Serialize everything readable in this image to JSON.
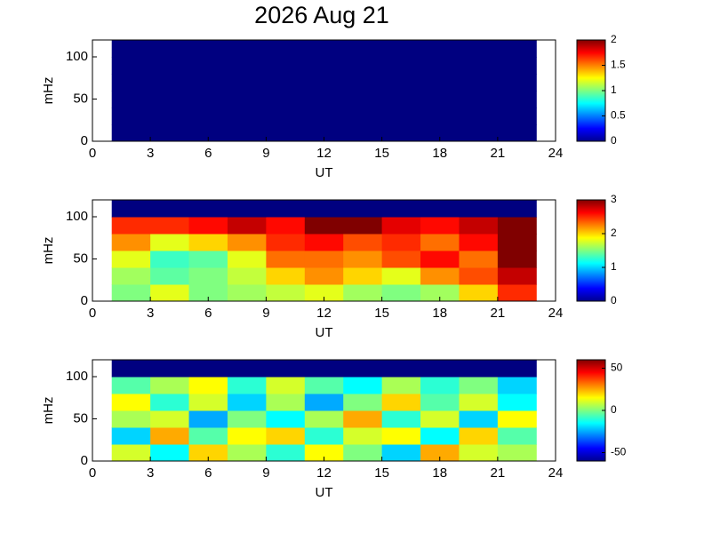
{
  "chart_data": [
    {
      "type": "heatmap",
      "title": "2026 Aug 21",
      "xlabel": "UT",
      "ylabel": "mHz",
      "colormap": "jet",
      "xlim": [
        0,
        24
      ],
      "xticks": [
        0,
        3,
        6,
        9,
        12,
        15,
        18,
        21,
        24
      ],
      "ylim": [
        0,
        120
      ],
      "yticks": [
        0,
        50,
        100
      ],
      "xbins": [
        1,
        3,
        5,
        7,
        9,
        11,
        13,
        15,
        17,
        19,
        21,
        23
      ],
      "ybins": [
        0,
        20,
        40,
        60,
        80,
        100,
        120
      ],
      "values": [
        [
          0,
          0,
          0,
          0,
          0,
          0,
          0,
          0,
          0,
          0,
          0
        ],
        [
          0,
          0,
          0,
          0,
          0,
          0,
          0,
          0,
          0,
          0,
          0
        ],
        [
          0,
          0,
          0,
          0,
          0,
          0,
          0,
          0,
          0,
          0,
          0
        ],
        [
          0,
          0,
          0,
          0,
          0,
          0,
          0,
          0,
          0,
          0,
          0
        ],
        [
          0,
          0,
          0,
          0,
          0,
          0,
          0,
          0,
          0,
          0,
          0
        ],
        [
          0,
          0,
          0,
          0,
          0,
          0,
          0,
          0,
          0,
          0,
          0
        ]
      ],
      "clim": [
        0,
        2
      ],
      "cticks": [
        0,
        0.5,
        1,
        1.5,
        2
      ]
    },
    {
      "type": "heatmap",
      "xlabel": "UT",
      "ylabel": "mHz",
      "colormap": "jet",
      "xlim": [
        0,
        24
      ],
      "xticks": [
        0,
        3,
        6,
        9,
        12,
        15,
        18,
        21,
        24
      ],
      "ylim": [
        0,
        120
      ],
      "yticks": [
        0,
        50,
        100
      ],
      "xbins": [
        1,
        3,
        5,
        7,
        9,
        11,
        13,
        15,
        17,
        19,
        21,
        23
      ],
      "ybins": [
        0,
        20,
        40,
        60,
        80,
        100,
        120
      ],
      "values": [
        [
          1.5,
          1.8,
          1.5,
          1.6,
          1.7,
          1.8,
          1.6,
          1.5,
          1.6,
          2.0,
          2.5
        ],
        [
          1.6,
          1.4,
          1.5,
          1.7,
          2.0,
          2.2,
          2.0,
          1.8,
          2.2,
          2.4,
          2.8
        ],
        [
          1.8,
          1.3,
          1.4,
          1.8,
          2.3,
          2.3,
          2.2,
          2.4,
          2.6,
          2.3,
          3
        ],
        [
          2.2,
          1.8,
          2.0,
          2.2,
          2.5,
          2.6,
          2.4,
          2.5,
          2.3,
          2.6,
          3
        ],
        [
          2.5,
          2.5,
          2.6,
          2.8,
          2.6,
          3,
          3,
          2.7,
          2.6,
          2.8,
          3
        ],
        [
          0,
          0,
          0,
          0,
          0,
          0,
          0,
          0,
          0,
          0,
          0
        ]
      ],
      "clim": [
        0,
        3
      ],
      "cticks": [
        0,
        1,
        2,
        3
      ]
    },
    {
      "type": "heatmap",
      "xlabel": "UT",
      "ylabel": "mHz",
      "colormap": "jet",
      "xlim": [
        0,
        24
      ],
      "xticks": [
        0,
        3,
        6,
        9,
        12,
        15,
        18,
        21,
        24
      ],
      "ylim": [
        0,
        120
      ],
      "yticks": [
        0,
        50,
        100
      ],
      "xbins": [
        1,
        3,
        5,
        7,
        9,
        11,
        13,
        15,
        17,
        19,
        21,
        23
      ],
      "ybins": [
        0,
        20,
        40,
        60,
        80,
        100,
        120
      ],
      "values": [
        [
          10,
          -15,
          20,
          5,
          -10,
          15,
          0,
          -20,
          25,
          10,
          5
        ],
        [
          -20,
          25,
          -5,
          15,
          20,
          -10,
          10,
          15,
          -15,
          20,
          -5
        ],
        [
          5,
          10,
          -25,
          0,
          -15,
          5,
          25,
          -10,
          10,
          -20,
          15
        ],
        [
          15,
          -10,
          10,
          -20,
          5,
          -25,
          0,
          20,
          -5,
          10,
          -15
        ],
        [
          -5,
          5,
          15,
          -10,
          10,
          -5,
          -15,
          5,
          -10,
          0,
          -20
        ],
        [
          -60,
          -60,
          -60,
          -60,
          -60,
          -60,
          -60,
          -60,
          -60,
          -60,
          -60
        ]
      ],
      "clim": [
        -60,
        60
      ],
      "cticks": [
        -50,
        0,
        50
      ]
    }
  ]
}
